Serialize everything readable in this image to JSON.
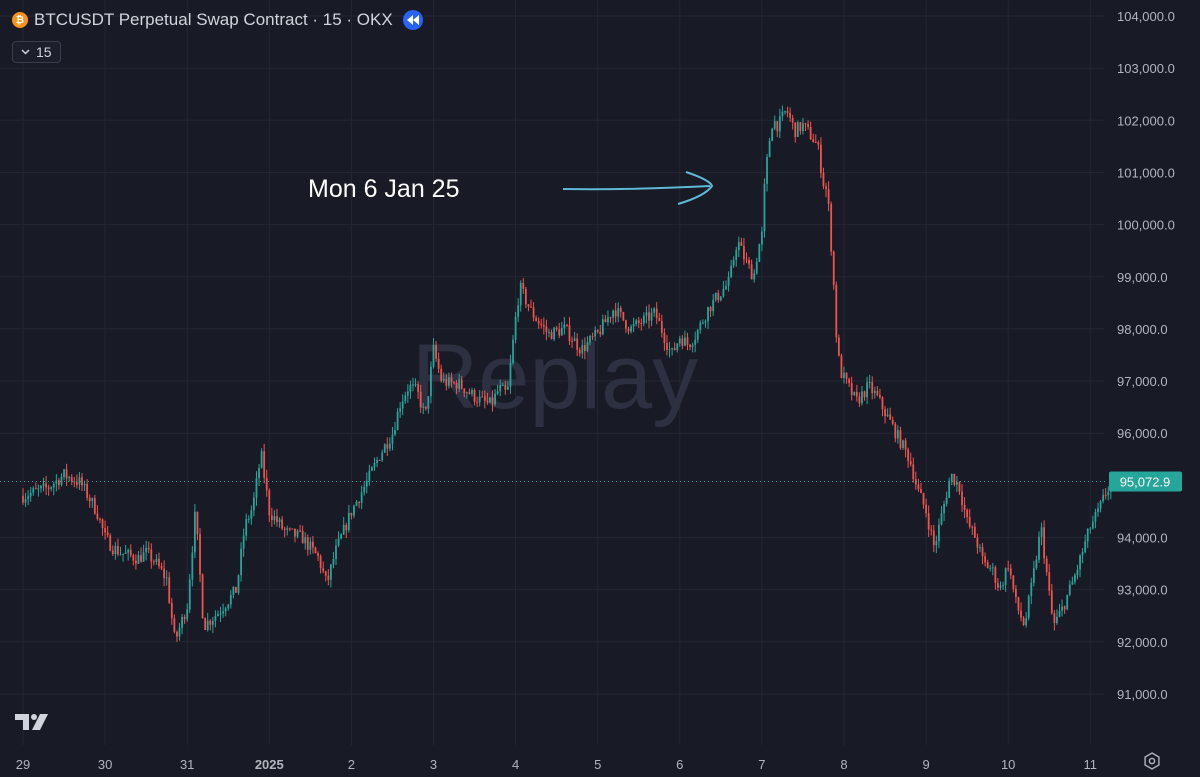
{
  "header": {
    "title": "BTCUSDT Perpetual Swap Contract · 15 · OKX",
    "interval_label": "15",
    "btc_icon_glyph": "₿",
    "coin_icon": "bitcoin-icon",
    "replay_icon": "rewind-icon"
  },
  "watermark": "Replay",
  "annotation": {
    "text": "Mon 6 Jan 25"
  },
  "colors": {
    "up": "#26a69a",
    "down": "#ef5350",
    "background": "#181a25",
    "grid": "#242733",
    "price_line": "#26a69a",
    "annotation": "#5fb8d6",
    "axis_text": "#b2b5be"
  },
  "chart_data": {
    "type": "candlestick",
    "title": "BTCUSDT Perpetual Swap Contract · 15 · OKX",
    "interval": "15",
    "ylim": [
      90500,
      104200
    ],
    "y_ticks": [
      "104,000.0",
      "103,000.0",
      "102,000.0",
      "101,000.0",
      "100,000.0",
      "99,000.0",
      "98,000.0",
      "97,000.0",
      "96,000.0",
      "94,000.0",
      "93,000.0",
      "92,000.0",
      "91,000.0"
    ],
    "x_ticks": [
      "29",
      "30",
      "31",
      "2025",
      "2",
      "3",
      "4",
      "5",
      "6",
      "7",
      "8",
      "9",
      "10",
      "11"
    ],
    "last_price": 95072.9,
    "last_price_label": "95,072.9",
    "price_path": [
      [
        0,
        94800
      ],
      [
        0.3,
        94950
      ],
      [
        0.5,
        95200
      ],
      [
        0.7,
        95050
      ],
      [
        0.9,
        94500
      ],
      [
        1.0,
        94000
      ],
      [
        1.1,
        93800
      ],
      [
        1.2,
        93700
      ],
      [
        1.3,
        93650
      ],
      [
        1.4,
        93600
      ],
      [
        1.5,
        93700
      ],
      [
        1.6,
        93550
      ],
      [
        1.75,
        93200
      ],
      [
        1.85,
        92000
      ],
      [
        2.0,
        92700
      ],
      [
        2.1,
        94500
      ],
      [
        2.2,
        92300
      ],
      [
        2.4,
        92600
      ],
      [
        2.6,
        93000
      ],
      [
        2.7,
        94200
      ],
      [
        2.8,
        94600
      ],
      [
        2.9,
        95600
      ],
      [
        3.0,
        94500
      ],
      [
        3.2,
        94100
      ],
      [
        3.4,
        94000
      ],
      [
        3.6,
        93600
      ],
      [
        3.7,
        93100
      ],
      [
        3.8,
        93700
      ],
      [
        4.0,
        94500
      ],
      [
        4.2,
        95100
      ],
      [
        4.35,
        95600
      ],
      [
        4.5,
        96000
      ],
      [
        4.6,
        96600
      ],
      [
        4.7,
        96900
      ],
      [
        4.8,
        96800
      ],
      [
        4.9,
        96300
      ],
      [
        5.0,
        97600
      ],
      [
        5.1,
        97000
      ],
      [
        5.2,
        96950
      ],
      [
        5.3,
        96950
      ],
      [
        5.5,
        96700
      ],
      [
        5.6,
        96600
      ],
      [
        5.7,
        96550
      ],
      [
        5.8,
        96850
      ],
      [
        5.9,
        96750
      ],
      [
        6.0,
        98200
      ],
      [
        6.05,
        98800
      ],
      [
        6.2,
        98300
      ],
      [
        6.4,
        97900
      ],
      [
        6.6,
        98000
      ],
      [
        6.8,
        97600
      ],
      [
        7.0,
        97900
      ],
      [
        7.2,
        98400
      ],
      [
        7.3,
        98200
      ],
      [
        7.4,
        98000
      ],
      [
        7.5,
        98100
      ],
      [
        7.7,
        98300
      ],
      [
        7.8,
        97900
      ],
      [
        7.9,
        97500
      ],
      [
        8.0,
        97850
      ],
      [
        8.1,
        97700
      ],
      [
        8.2,
        97900
      ],
      [
        8.35,
        98400
      ],
      [
        8.5,
        98700
      ],
      [
        8.6,
        98900
      ],
      [
        8.7,
        99700
      ],
      [
        8.8,
        99300
      ],
      [
        8.9,
        99000
      ],
      [
        8.95,
        99500
      ],
      [
        9.0,
        99800
      ],
      [
        9.02,
        100500
      ],
      [
        9.08,
        101500
      ],
      [
        9.13,
        102000
      ],
      [
        9.2,
        101900
      ],
      [
        9.3,
        102200
      ],
      [
        9.4,
        101800
      ],
      [
        9.5,
        101900
      ],
      [
        9.6,
        101700
      ],
      [
        9.68,
        101500
      ],
      [
        9.75,
        100800
      ],
      [
        9.8,
        100600
      ],
      [
        9.87,
        99000
      ],
      [
        9.9,
        98000
      ],
      [
        9.95,
        97200
      ],
      [
        10.05,
        96900
      ],
      [
        10.15,
        96600
      ],
      [
        10.3,
        96900
      ],
      [
        10.4,
        96700
      ],
      [
        10.5,
        96400
      ],
      [
        10.6,
        96100
      ],
      [
        10.7,
        95800
      ],
      [
        10.8,
        95500
      ],
      [
        10.85,
        95200
      ],
      [
        10.9,
        94900
      ],
      [
        11.0,
        94500
      ],
      [
        11.1,
        93800
      ],
      [
        11.2,
        94500
      ],
      [
        11.3,
        95200
      ],
      [
        11.4,
        95000
      ],
      [
        11.5,
        94300
      ],
      [
        11.6,
        94000
      ],
      [
        11.7,
        93500
      ],
      [
        11.8,
        93400
      ],
      [
        11.9,
        93000
      ],
      [
        12.0,
        93500
      ],
      [
        12.1,
        92700
      ],
      [
        12.2,
        92300
      ],
      [
        12.3,
        93200
      ],
      [
        12.4,
        94200
      ],
      [
        12.5,
        92900
      ],
      [
        12.55,
        92300
      ],
      [
        12.65,
        92600
      ],
      [
        12.8,
        93200
      ],
      [
        12.9,
        93700
      ],
      [
        13.0,
        94200
      ],
      [
        13.1,
        94500
      ],
      [
        13.15,
        94700
      ],
      [
        13.2,
        94900
      ],
      [
        13.25,
        95000
      ],
      [
        13.3,
        95072.9
      ]
    ]
  }
}
